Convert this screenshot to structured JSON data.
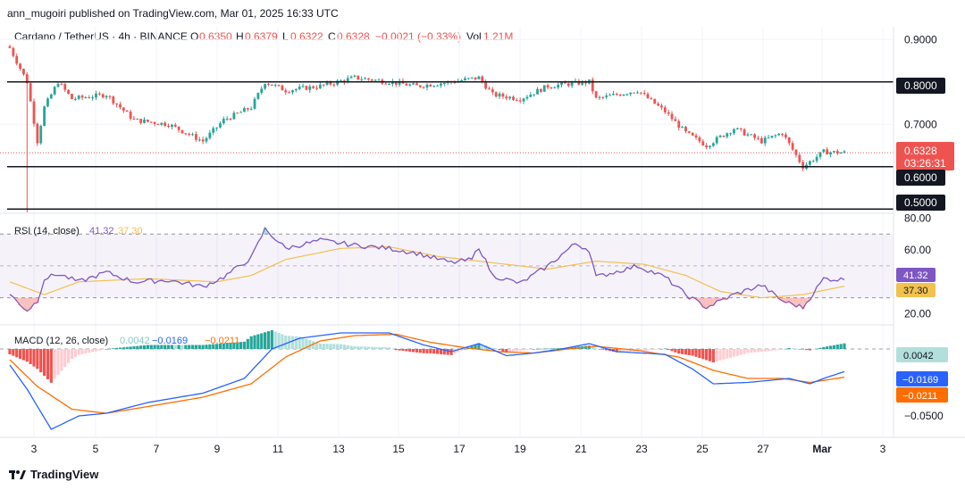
{
  "header": {
    "published": "ann_mugoiri published on TradingView.com, Mar 01, 2025 16:33 UTC"
  },
  "symbol_line": {
    "symbol": "Cardano / TetherUS · 4h · BINANCE",
    "o_label": "O",
    "o_value": "0.6350",
    "h_label": "H",
    "h_value": "0.6379",
    "l_label": "L",
    "l_value": "0.6322",
    "c_label": "C",
    "c_value": "0.6328",
    "change": "−0.0021 (−0.33%)",
    "vol_label": "Vol",
    "vol_value": "1.21M"
  },
  "colors": {
    "up": "#26a69a",
    "down": "#ef5350",
    "rsi": "#7e57c2",
    "rsi_ma": "#f2c14e",
    "macd": "#2962ff",
    "signal": "#ff6d00",
    "hist_up_strong": "#26a69a",
    "hist_up_weak": "#b2dfdb",
    "hist_down_strong": "#ef5350",
    "hist_down_weak": "#ffcdd2"
  },
  "chart_data": {
    "type": "candlestick",
    "price_axis": {
      "ticks": [
        "0.9000",
        "0.8000",
        "0.7000",
        "0.6000",
        "0.5000"
      ],
      "ylim": [
        0.49,
        0.93
      ]
    },
    "horizontal_levels": [
      0.8,
      0.6,
      0.5,
      0.6328
    ],
    "current_price": "0.6328",
    "countdown": "03:26:31",
    "level_labels": [
      "0.8000",
      "0.6000",
      "0.5000"
    ],
    "x_ticks": [
      "3",
      "5",
      "7",
      "9",
      "11",
      "13",
      "15",
      "17",
      "19",
      "21",
      "23",
      "25",
      "27",
      "Mar",
      "3"
    ],
    "anchors": [
      [
        0,
        0.88
      ],
      [
        5,
        0.8
      ],
      [
        8,
        0.66
      ],
      [
        10,
        0.74
      ],
      [
        14,
        0.8
      ],
      [
        18,
        0.76
      ],
      [
        28,
        0.77
      ],
      [
        36,
        0.71
      ],
      [
        46,
        0.7
      ],
      [
        56,
        0.66
      ],
      [
        62,
        0.71
      ],
      [
        70,
        0.74
      ],
      [
        74,
        0.8
      ],
      [
        80,
        0.78
      ],
      [
        90,
        0.79
      ],
      [
        100,
        0.81
      ],
      [
        110,
        0.8
      ],
      [
        118,
        0.79
      ],
      [
        128,
        0.8
      ],
      [
        136,
        0.81
      ],
      [
        140,
        0.77
      ],
      [
        148,
        0.76
      ],
      [
        156,
        0.79
      ],
      [
        168,
        0.8
      ],
      [
        170,
        0.76
      ],
      [
        182,
        0.78
      ],
      [
        190,
        0.73
      ],
      [
        196,
        0.68
      ],
      [
        202,
        0.65
      ],
      [
        210,
        0.69
      ],
      [
        218,
        0.66
      ],
      [
        224,
        0.68
      ],
      [
        230,
        0.6
      ],
      [
        236,
        0.635
      ],
      [
        242,
        0.6328
      ]
    ],
    "rsi": {
      "label": "RSI (14, close)",
      "value": "41.32",
      "ma_value": "37.30",
      "ticks": [
        "80.00",
        "60.00",
        "20.00"
      ],
      "ylim": [
        13,
        83
      ],
      "anchors": [
        [
          0,
          32
        ],
        [
          5,
          22
        ],
        [
          8,
          28
        ],
        [
          10,
          42
        ],
        [
          14,
          45
        ],
        [
          20,
          40
        ],
        [
          28,
          46
        ],
        [
          36,
          40
        ],
        [
          46,
          41
        ],
        [
          56,
          37
        ],
        [
          62,
          43
        ],
        [
          70,
          55
        ],
        [
          74,
          73
        ],
        [
          80,
          61
        ],
        [
          90,
          66
        ],
        [
          100,
          63
        ],
        [
          110,
          61
        ],
        [
          118,
          58
        ],
        [
          128,
          52
        ],
        [
          134,
          54
        ],
        [
          136,
          62
        ],
        [
          140,
          44
        ],
        [
          148,
          39
        ],
        [
          156,
          50
        ],
        [
          164,
          64
        ],
        [
          168,
          60
        ],
        [
          170,
          43
        ],
        [
          182,
          50
        ],
        [
          190,
          43
        ],
        [
          196,
          32
        ],
        [
          202,
          24
        ],
        [
          210,
          32
        ],
        [
          218,
          38
        ],
        [
          224,
          28
        ],
        [
          230,
          24
        ],
        [
          236,
          42
        ],
        [
          242,
          41.3
        ]
      ],
      "ma_anchors": [
        [
          0,
          40
        ],
        [
          10,
          32
        ],
        [
          20,
          40
        ],
        [
          40,
          42
        ],
        [
          60,
          40
        ],
        [
          70,
          44
        ],
        [
          80,
          54
        ],
        [
          96,
          61
        ],
        [
          110,
          62
        ],
        [
          124,
          56
        ],
        [
          140,
          52
        ],
        [
          156,
          48
        ],
        [
          170,
          53
        ],
        [
          184,
          51
        ],
        [
          196,
          44
        ],
        [
          206,
          34
        ],
        [
          218,
          30
        ],
        [
          230,
          32
        ],
        [
          242,
          37.3
        ]
      ]
    },
    "macd": {
      "label": "MACD (12, 26, close)",
      "hist": "0.0042",
      "macd": "−0.0169",
      "signal": "−0.0211",
      "ticks": [
        "−0.0500"
      ],
      "ylim": [
        -0.066,
        0.018
      ],
      "macd_anchors": [
        [
          0,
          -0.012
        ],
        [
          5,
          -0.03
        ],
        [
          12,
          -0.06
        ],
        [
          20,
          -0.05
        ],
        [
          28,
          -0.048
        ],
        [
          40,
          -0.04
        ],
        [
          56,
          -0.033
        ],
        [
          68,
          -0.022
        ],
        [
          76,
          0.0
        ],
        [
          84,
          0.008
        ],
        [
          96,
          0.012
        ],
        [
          110,
          0.012
        ],
        [
          120,
          0.003
        ],
        [
          128,
          -0.002
        ],
        [
          136,
          0.004
        ],
        [
          144,
          -0.005
        ],
        [
          152,
          -0.003
        ],
        [
          160,
          0.0
        ],
        [
          168,
          0.004
        ],
        [
          176,
          -0.002
        ],
        [
          190,
          -0.004
        ],
        [
          198,
          -0.015
        ],
        [
          204,
          -0.026
        ],
        [
          214,
          -0.025
        ],
        [
          226,
          -0.022
        ],
        [
          232,
          -0.026
        ],
        [
          236,
          -0.022
        ],
        [
          242,
          -0.0169
        ]
      ],
      "signal_anchors": [
        [
          0,
          -0.008
        ],
        [
          8,
          -0.028
        ],
        [
          18,
          -0.045
        ],
        [
          28,
          -0.048
        ],
        [
          40,
          -0.043
        ],
        [
          56,
          -0.036
        ],
        [
          70,
          -0.026
        ],
        [
          80,
          -0.006
        ],
        [
          90,
          0.006
        ],
        [
          100,
          0.01
        ],
        [
          112,
          0.011
        ],
        [
          122,
          0.005
        ],
        [
          132,
          0.001
        ],
        [
          142,
          -0.002
        ],
        [
          152,
          -0.003
        ],
        [
          162,
          0.0
        ],
        [
          170,
          0.002
        ],
        [
          182,
          -0.001
        ],
        [
          194,
          -0.006
        ],
        [
          204,
          -0.016
        ],
        [
          214,
          -0.022
        ],
        [
          224,
          -0.022
        ],
        [
          232,
          -0.025
        ],
        [
          242,
          -0.0211
        ]
      ]
    }
  }
}
